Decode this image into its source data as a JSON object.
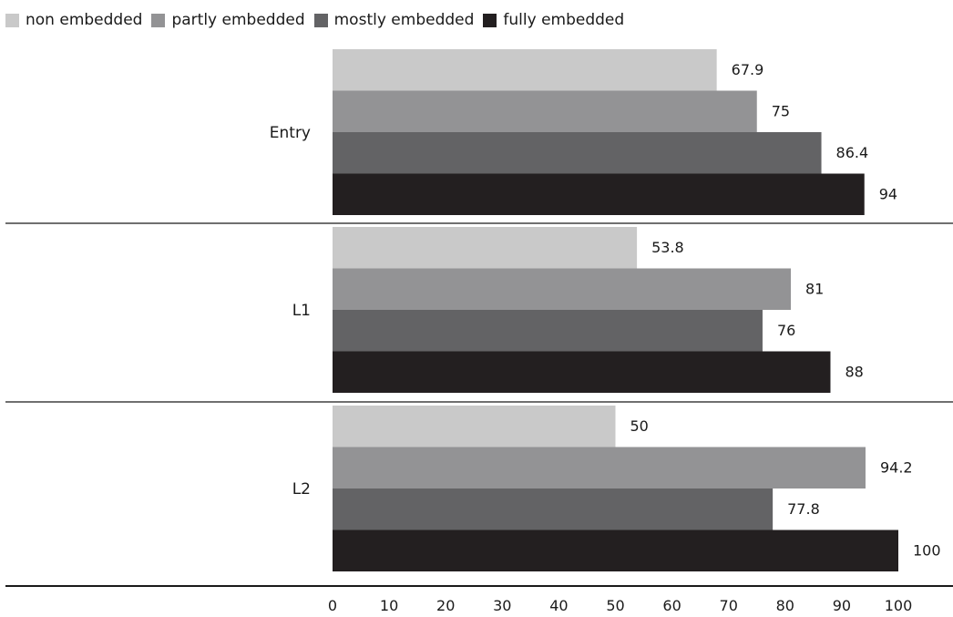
{
  "chart_data": {
    "type": "bar",
    "orientation": "horizontal",
    "categories": [
      "Entry",
      "L1",
      "L2"
    ],
    "series": [
      {
        "name": "non embedded",
        "color": "#c9c9c9",
        "values": [
          67.9,
          53.8,
          50
        ]
      },
      {
        "name": "partly embedded",
        "color": "#939395",
        "values": [
          75,
          81,
          94.2
        ]
      },
      {
        "name": "mostly embedded",
        "color": "#636365",
        "values": [
          86.4,
          76,
          77.8
        ]
      },
      {
        "name": "fully embedded",
        "color": "#231f20",
        "values": [
          94,
          88,
          100
        ]
      }
    ],
    "xlim": [
      0,
      100
    ],
    "xticks": [
      "0",
      "10",
      "20",
      "30",
      "40",
      "50",
      "60",
      "70",
      "80",
      "90",
      "100"
    ],
    "grid": false,
    "legend_position": "top-left"
  }
}
